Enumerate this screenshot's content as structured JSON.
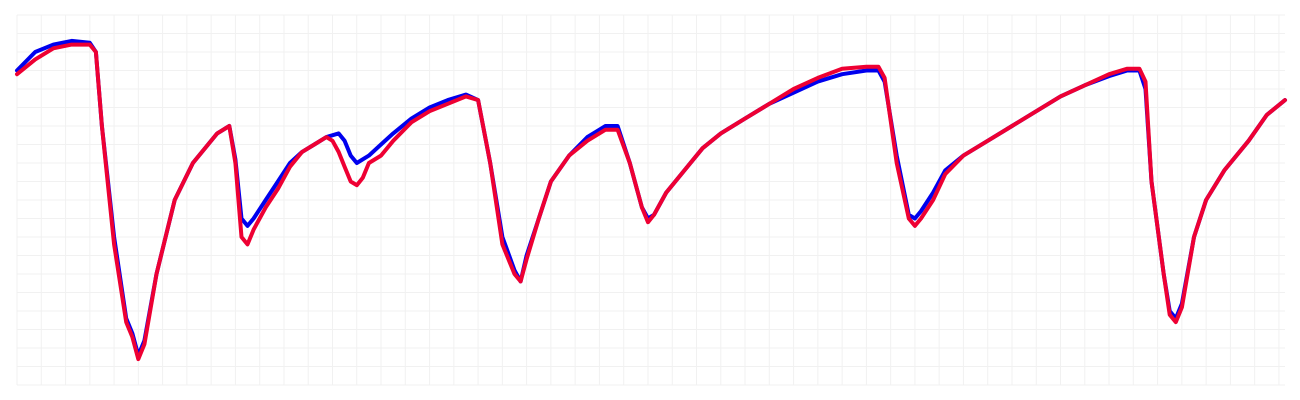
{
  "chart_data": {
    "type": "line",
    "title": "",
    "xlabel": "",
    "ylabel": "",
    "grid": true,
    "xlim": [
      0,
      209
    ],
    "ylim": [
      0,
      100
    ],
    "x_grid_step": 4,
    "y_grid_step": 5,
    "series": [
      {
        "color": "#0000ee",
        "points": [
          [
            0,
            85
          ],
          [
            3,
            90
          ],
          [
            6,
            92
          ],
          [
            9,
            93
          ],
          [
            12,
            92.5
          ],
          [
            13,
            90
          ],
          [
            14,
            70
          ],
          [
            16,
            40
          ],
          [
            18,
            18
          ],
          [
            19,
            14
          ],
          [
            20,
            8
          ],
          [
            21,
            12
          ],
          [
            23,
            30
          ],
          [
            26,
            50
          ],
          [
            29,
            60
          ],
          [
            33,
            68
          ],
          [
            35,
            70
          ],
          [
            36,
            61
          ],
          [
            37,
            45
          ],
          [
            38,
            43
          ],
          [
            39,
            45
          ],
          [
            41,
            50
          ],
          [
            43,
            55
          ],
          [
            45,
            60
          ],
          [
            47,
            63
          ],
          [
            49,
            65
          ],
          [
            51,
            67
          ],
          [
            53,
            68
          ],
          [
            54,
            66
          ],
          [
            55,
            62
          ],
          [
            56,
            60
          ],
          [
            58,
            62
          ],
          [
            60,
            65
          ],
          [
            62,
            68
          ],
          [
            65,
            72
          ],
          [
            68,
            75
          ],
          [
            71,
            77
          ],
          [
            74,
            78.5
          ],
          [
            76,
            77
          ],
          [
            78,
            60
          ],
          [
            80,
            40
          ],
          [
            82,
            31
          ],
          [
            83,
            28
          ],
          [
            84,
            35
          ],
          [
            86,
            45
          ],
          [
            88,
            55
          ],
          [
            91,
            62
          ],
          [
            94,
            67
          ],
          [
            97,
            70
          ],
          [
            99,
            70
          ],
          [
            101,
            60
          ],
          [
            103,
            48
          ],
          [
            104,
            45
          ],
          [
            105,
            46
          ],
          [
            107,
            52
          ],
          [
            110,
            58
          ],
          [
            113,
            64
          ],
          [
            116,
            68
          ],
          [
            120,
            72
          ],
          [
            124,
            76
          ],
          [
            128,
            79
          ],
          [
            132,
            82
          ],
          [
            136,
            84
          ],
          [
            140,
            85
          ],
          [
            142,
            85
          ],
          [
            143,
            82
          ],
          [
            145,
            62
          ],
          [
            147,
            46
          ],
          [
            148,
            45
          ],
          [
            149,
            47
          ],
          [
            151,
            52
          ],
          [
            153,
            58
          ],
          [
            156,
            62
          ],
          [
            160,
            66
          ],
          [
            164,
            70
          ],
          [
            168,
            74
          ],
          [
            172,
            78
          ],
          [
            176,
            81
          ],
          [
            180,
            83.5
          ],
          [
            183,
            85
          ],
          [
            185,
            85
          ],
          [
            186,
            80
          ],
          [
            187,
            55
          ],
          [
            189,
            30
          ],
          [
            190,
            20
          ],
          [
            191,
            18
          ],
          [
            192,
            22
          ],
          [
            194,
            40
          ],
          [
            196,
            50
          ],
          [
            199,
            58
          ],
          [
            203,
            66
          ],
          [
            206,
            73
          ],
          [
            209,
            77
          ]
        ]
      },
      {
        "color": "#ee0033",
        "points": [
          [
            0,
            84
          ],
          [
            3,
            88
          ],
          [
            6,
            91
          ],
          [
            9,
            92
          ],
          [
            12,
            92
          ],
          [
            13,
            90
          ],
          [
            14,
            70
          ],
          [
            16,
            38
          ],
          [
            18,
            17
          ],
          [
            19,
            13
          ],
          [
            20,
            7
          ],
          [
            21,
            11
          ],
          [
            23,
            30
          ],
          [
            26,
            50
          ],
          [
            29,
            60
          ],
          [
            33,
            68
          ],
          [
            35,
            70
          ],
          [
            36,
            60
          ],
          [
            37,
            40
          ],
          [
            38,
            38
          ],
          [
            39,
            42
          ],
          [
            41,
            48
          ],
          [
            43,
            53
          ],
          [
            45,
            59
          ],
          [
            47,
            63
          ],
          [
            49,
            65
          ],
          [
            51,
            67
          ],
          [
            52,
            66
          ],
          [
            53,
            63
          ],
          [
            54,
            59
          ],
          [
            55,
            55
          ],
          [
            56,
            54
          ],
          [
            57,
            56
          ],
          [
            58,
            60
          ],
          [
            60,
            62
          ],
          [
            62,
            66
          ],
          [
            65,
            71
          ],
          [
            68,
            74
          ],
          [
            71,
            76
          ],
          [
            74,
            78
          ],
          [
            76,
            77
          ],
          [
            78,
            60
          ],
          [
            80,
            38
          ],
          [
            82,
            30
          ],
          [
            83,
            28
          ],
          [
            84,
            34
          ],
          [
            86,
            45
          ],
          [
            88,
            55
          ],
          [
            91,
            62
          ],
          [
            94,
            66
          ],
          [
            97,
            69
          ],
          [
            99,
            69
          ],
          [
            101,
            60
          ],
          [
            103,
            48
          ],
          [
            104,
            44
          ],
          [
            105,
            46
          ],
          [
            107,
            52
          ],
          [
            110,
            58
          ],
          [
            113,
            64
          ],
          [
            116,
            68
          ],
          [
            120,
            72
          ],
          [
            124,
            76
          ],
          [
            128,
            80
          ],
          [
            132,
            83
          ],
          [
            136,
            85.5
          ],
          [
            140,
            86
          ],
          [
            142,
            86
          ],
          [
            143,
            83
          ],
          [
            145,
            60
          ],
          [
            147,
            45
          ],
          [
            148,
            43
          ],
          [
            149,
            45
          ],
          [
            151,
            50
          ],
          [
            153,
            57
          ],
          [
            156,
            62
          ],
          [
            160,
            66
          ],
          [
            164,
            70
          ],
          [
            168,
            74
          ],
          [
            172,
            78
          ],
          [
            176,
            81
          ],
          [
            180,
            84
          ],
          [
            183,
            85.5
          ],
          [
            185,
            85.5
          ],
          [
            186,
            82
          ],
          [
            187,
            55
          ],
          [
            189,
            30
          ],
          [
            190,
            19
          ],
          [
            191,
            17
          ],
          [
            192,
            21
          ],
          [
            194,
            40
          ],
          [
            196,
            50
          ],
          [
            199,
            58
          ],
          [
            203,
            66
          ],
          [
            206,
            73
          ],
          [
            209,
            77
          ]
        ]
      }
    ]
  }
}
